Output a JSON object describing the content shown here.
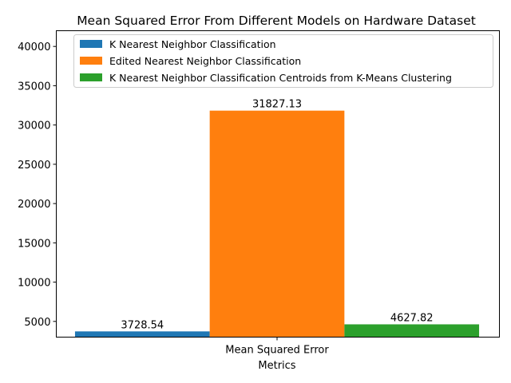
{
  "chart_data": {
    "type": "bar",
    "title": "Mean Squared Error From Different Models on Hardware Dataset",
    "xlabel": "Metrics",
    "ylabel": "",
    "categories": [
      "Mean Squared Error"
    ],
    "series": [
      {
        "name": "K Nearest Neighbor Classification",
        "values": [
          3728.54
        ],
        "color": "#1f77b4",
        "label": "3728.54"
      },
      {
        "name": "Edited Nearest Neighbor Classification",
        "values": [
          31827.13
        ],
        "color": "#ff7f0e",
        "label": "31827.13"
      },
      {
        "name": "K Nearest Neighbor Classification Centroids from K-Means Clustering",
        "values": [
          4627.82
        ],
        "color": "#2ca02c",
        "label": "4627.82"
      }
    ],
    "ylim": [
      3000,
      42000
    ],
    "yticks": [
      5000,
      10000,
      15000,
      20000,
      25000,
      30000,
      35000,
      40000
    ],
    "grid": false,
    "legend_position": "top-center"
  }
}
